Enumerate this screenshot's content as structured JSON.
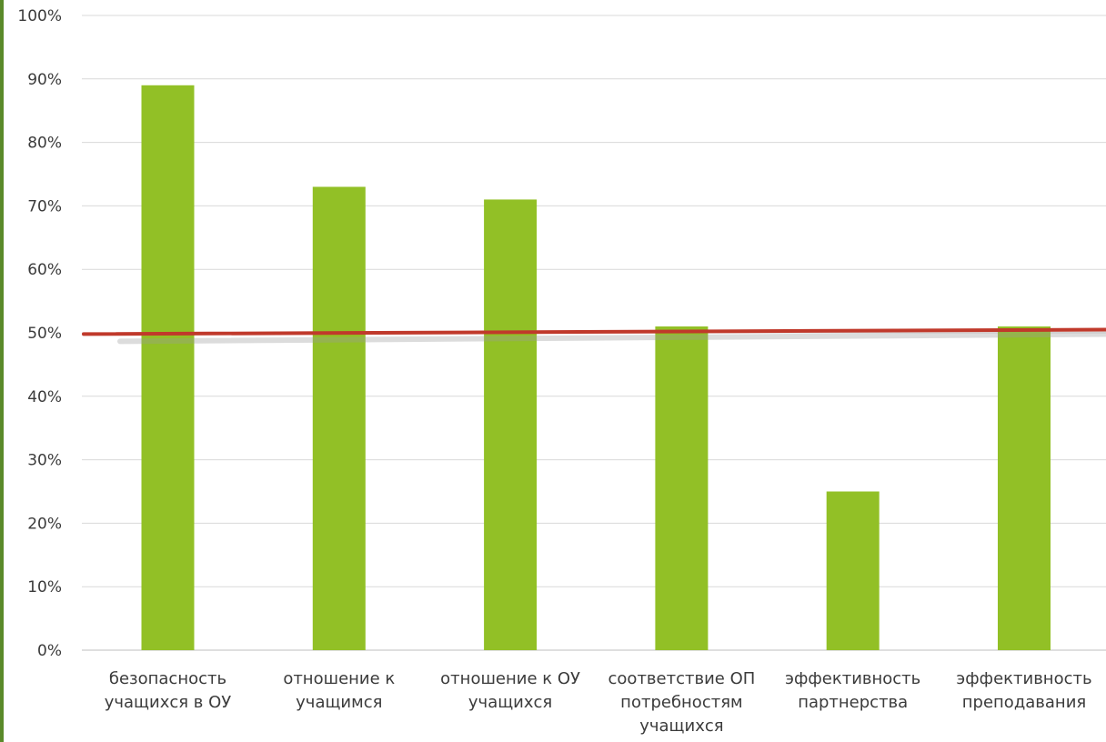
{
  "chart_data": {
    "type": "bar",
    "title": "",
    "xlabel": "",
    "ylabel": "",
    "ylim": [
      0,
      100
    ],
    "y_tick_suffix": "%",
    "y_ticks": [
      0,
      10,
      20,
      30,
      40,
      50,
      60,
      70,
      80,
      90,
      100
    ],
    "grid": true,
    "categories": [
      [
        "безопасность",
        "учащихся в ОУ"
      ],
      [
        "отношение к",
        "учащимся"
      ],
      [
        "отношение к ОУ",
        "учащихся"
      ],
      [
        "соответствие ОП",
        "потребностям",
        "учащихся"
      ],
      [
        "эффективность",
        "партнерства"
      ],
      [
        "эффективность",
        "преподавания"
      ]
    ],
    "values": [
      89,
      73,
      71,
      51,
      25,
      51
    ],
    "reference_line": {
      "y_start": 49.8,
      "y_end": 50.5
    }
  },
  "colors": {
    "bar": "#92c026",
    "bar_shade": "#7fae1c",
    "reference_line": "#c0392b",
    "grid": "#d9d9d9",
    "axis": "#bfbfbf",
    "left_accent": "#5a8a2a"
  }
}
